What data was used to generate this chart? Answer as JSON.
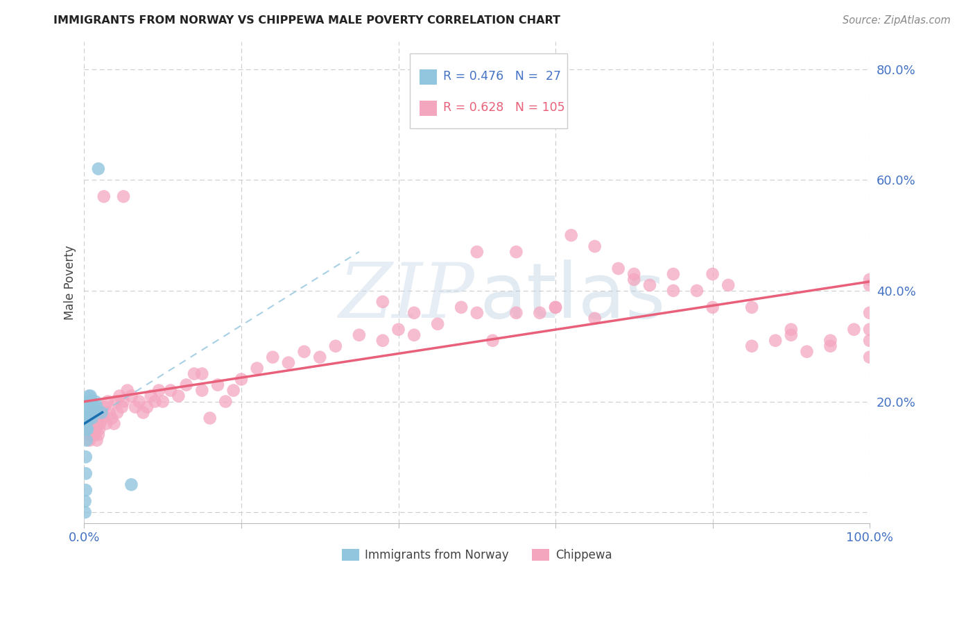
{
  "title": "IMMIGRANTS FROM NORWAY VS CHIPPEWA MALE POVERTY CORRELATION CHART",
  "source": "Source: ZipAtlas.com",
  "ylabel": "Male Poverty",
  "xlim": [
    0,
    1.0
  ],
  "ylim": [
    -0.02,
    0.85
  ],
  "norway_color": "#92c5de",
  "chippewa_color": "#f4a6bf",
  "norway_line_color": "#1a6faf",
  "norway_dash_color": "#92c5de",
  "chippewa_line_color": "#e8607a",
  "norway_R": 0.476,
  "norway_N": 27,
  "chippewa_R": 0.628,
  "chippewa_N": 105,
  "background_color": "#ffffff",
  "grid_color": "#cccccc",
  "tick_color": "#4472c4",
  "ytick_positions": [
    0.0,
    0.2,
    0.4,
    0.6,
    0.8
  ],
  "ytick_labels": [
    "",
    "20.0%",
    "40.0%",
    "60.0%",
    "80.0%"
  ],
  "xtick_positions": [
    0.0,
    0.2,
    0.4,
    0.6,
    0.8,
    1.0
  ],
  "xtick_labels": [
    "0.0%",
    "",
    "",
    "",
    "",
    "100.0%"
  ],
  "norway_x": [
    0.001,
    0.001,
    0.002,
    0.002,
    0.002,
    0.003,
    0.003,
    0.003,
    0.004,
    0.004,
    0.005,
    0.005,
    0.006,
    0.006,
    0.007,
    0.007,
    0.008,
    0.008,
    0.009,
    0.01,
    0.011,
    0.012,
    0.014,
    0.016,
    0.018,
    0.022,
    0.06
  ],
  "norway_y": [
    0.0,
    0.02,
    0.04,
    0.07,
    0.1,
    0.13,
    0.15,
    0.17,
    0.15,
    0.18,
    0.18,
    0.2,
    0.19,
    0.21,
    0.17,
    0.2,
    0.19,
    0.21,
    0.2,
    0.17,
    0.19,
    0.18,
    0.2,
    0.19,
    0.62,
    0.18,
    0.05
  ],
  "chippewa_x": [
    0.001,
    0.002,
    0.003,
    0.005,
    0.006,
    0.007,
    0.008,
    0.009,
    0.01,
    0.011,
    0.012,
    0.013,
    0.014,
    0.015,
    0.016,
    0.017,
    0.018,
    0.019,
    0.02,
    0.022,
    0.024,
    0.026,
    0.028,
    0.03,
    0.032,
    0.035,
    0.038,
    0.04,
    0.042,
    0.045,
    0.048,
    0.05,
    0.055,
    0.06,
    0.065,
    0.07,
    0.075,
    0.08,
    0.085,
    0.09,
    0.095,
    0.1,
    0.11,
    0.12,
    0.13,
    0.14,
    0.15,
    0.16,
    0.17,
    0.18,
    0.19,
    0.2,
    0.22,
    0.24,
    0.26,
    0.28,
    0.3,
    0.32,
    0.35,
    0.38,
    0.4,
    0.42,
    0.45,
    0.48,
    0.5,
    0.52,
    0.55,
    0.58,
    0.6,
    0.62,
    0.65,
    0.68,
    0.7,
    0.72,
    0.75,
    0.78,
    0.8,
    0.82,
    0.85,
    0.88,
    0.9,
    0.92,
    0.95,
    0.98,
    1.0,
    1.0,
    1.0,
    1.0,
    1.0,
    1.0,
    0.38,
    0.42,
    0.5,
    0.55,
    0.6,
    0.65,
    0.7,
    0.75,
    0.8,
    0.85,
    0.9,
    0.95,
    0.05,
    0.025,
    0.15
  ],
  "chippewa_y": [
    0.17,
    0.15,
    0.16,
    0.14,
    0.15,
    0.13,
    0.16,
    0.14,
    0.18,
    0.15,
    0.16,
    0.14,
    0.15,
    0.17,
    0.13,
    0.16,
    0.14,
    0.15,
    0.16,
    0.18,
    0.17,
    0.19,
    0.16,
    0.2,
    0.18,
    0.17,
    0.16,
    0.2,
    0.18,
    0.21,
    0.19,
    0.2,
    0.22,
    0.21,
    0.19,
    0.2,
    0.18,
    0.19,
    0.21,
    0.2,
    0.22,
    0.2,
    0.22,
    0.21,
    0.23,
    0.25,
    0.22,
    0.17,
    0.23,
    0.2,
    0.22,
    0.24,
    0.26,
    0.28,
    0.27,
    0.29,
    0.28,
    0.3,
    0.32,
    0.31,
    0.33,
    0.32,
    0.34,
    0.37,
    0.36,
    0.31,
    0.36,
    0.36,
    0.37,
    0.5,
    0.48,
    0.44,
    0.43,
    0.41,
    0.43,
    0.4,
    0.43,
    0.41,
    0.37,
    0.31,
    0.33,
    0.29,
    0.31,
    0.33,
    0.42,
    0.41,
    0.36,
    0.31,
    0.28,
    0.33,
    0.38,
    0.36,
    0.47,
    0.47,
    0.37,
    0.35,
    0.42,
    0.4,
    0.37,
    0.3,
    0.32,
    0.3,
    0.57,
    0.57,
    0.25
  ],
  "watermark_zip_color": "#c8d8e8",
  "watermark_atlas_color": "#b0c8dc"
}
